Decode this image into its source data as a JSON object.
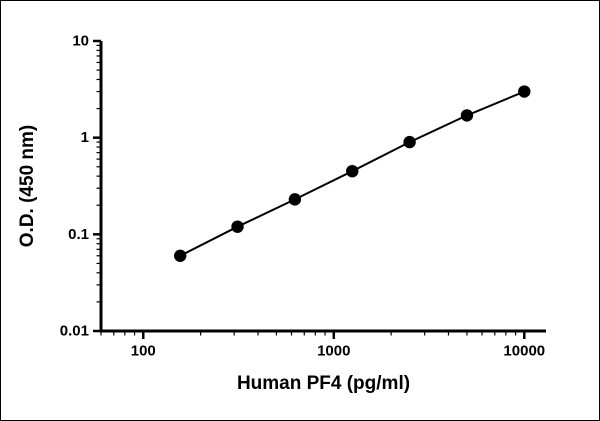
{
  "figure": {
    "background": "#ffffff",
    "border_color": "#000000"
  },
  "chart_data": {
    "type": "scatter",
    "line": true,
    "x": [
      156.3,
      312.5,
      625,
      1250,
      2500,
      5000,
      10000
    ],
    "y": [
      0.06,
      0.12,
      0.23,
      0.45,
      0.9,
      1.7,
      3.0
    ],
    "xlabel": "Human PF4 (pg/ml)",
    "ylabel": "O.D. (450 nm)",
    "xscale": "log",
    "yscale": "log",
    "xlim": [
      60,
      13000
    ],
    "ylim": [
      0.01,
      10
    ],
    "xticks": [
      100,
      1000,
      10000
    ],
    "xtick_labels": [
      "100",
      "1000",
      "10000"
    ],
    "yticks": [
      0.01,
      0.1,
      1,
      10
    ],
    "ytick_labels": [
      "0.01",
      "0.1",
      "1",
      "10"
    ],
    "grid": false,
    "legend": false,
    "marker": "circle",
    "marker_color": "#000000",
    "line_color": "#000000",
    "axis_color": "#000000"
  }
}
